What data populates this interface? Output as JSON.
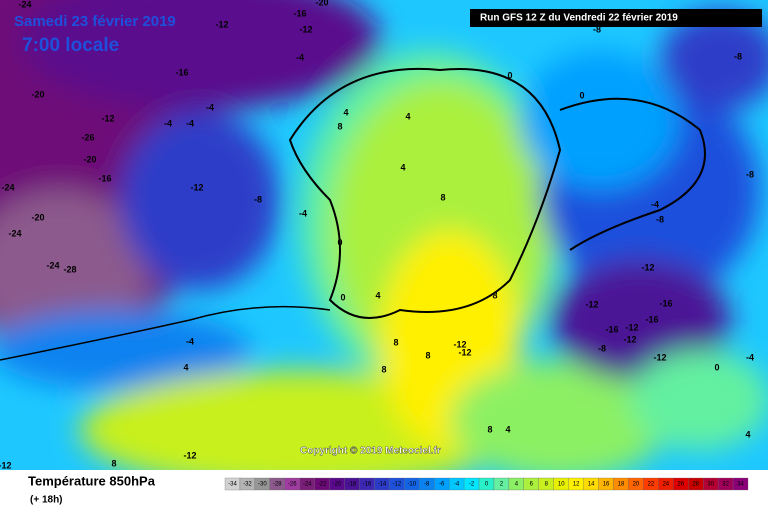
{
  "header": {
    "date": "Samedi 23 février 2019",
    "time": "7:00 locale",
    "run": "Run GFS 12 Z du Vendredi 22 février 2019"
  },
  "copyright": "Copyright © 2019 Meteociel.fr",
  "footer": {
    "title": "Température 850hPa",
    "lead": "(+ 18h)"
  },
  "legend": {
    "labels": [
      -34,
      -32,
      -30,
      -28,
      -26,
      -24,
      -22,
      -20,
      -18,
      -16,
      -14,
      -12,
      -10,
      -8,
      -6,
      -4,
      -2,
      0,
      2,
      4,
      6,
      8,
      10,
      12,
      14,
      16,
      18,
      20,
      22,
      24,
      26,
      28,
      30,
      32,
      34
    ],
    "colors": [
      "#d2d2d2",
      "#b4b4b4",
      "#969696",
      "#8c5a8c",
      "#a03ca0",
      "#7a1e7a",
      "#6e0a78",
      "#5a0a8c",
      "#4b1496",
      "#3c28b4",
      "#2d3cc8",
      "#1e50dc",
      "#1464e6",
      "#0a82f0",
      "#00a0ff",
      "#00c8ff",
      "#00e6ff",
      "#28f0c8",
      "#64f0a0",
      "#8cf064",
      "#aaf03c",
      "#c8f01e",
      "#e6f000",
      "#fff000",
      "#ffdc00",
      "#ffb400",
      "#ff8c00",
      "#ff6400",
      "#ff3c00",
      "#f01e00",
      "#dc0000",
      "#c80000",
      "#b40032",
      "#a0005a",
      "#8c0078"
    ]
  },
  "contour_labels": [
    "-24",
    "-20",
    "-16",
    "-12",
    "-12",
    "-16",
    "-20",
    "-4",
    "0",
    "0",
    "-8",
    "-8",
    "-12",
    "-4",
    "-4",
    "-4",
    "4",
    "8",
    "4",
    "-26",
    "-20",
    "-16",
    "-12",
    "-8",
    "-4",
    "0",
    "0",
    "4",
    "4",
    "-20",
    "-24",
    "-24",
    "-24",
    "-28",
    "8",
    "8",
    "-12",
    "-16",
    "-12",
    "-16",
    "-12",
    "-16",
    "-12",
    "-8",
    "-12",
    "-8",
    "-4",
    "-8",
    "-12",
    "-12",
    "8",
    "8",
    "8",
    "-4",
    "4",
    "8",
    "-12",
    "-12",
    "0",
    "4",
    "-4",
    "8",
    "4"
  ]
}
